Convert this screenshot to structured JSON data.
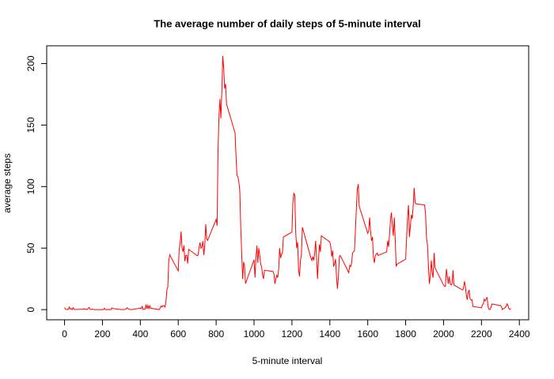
{
  "chart_data": {
    "type": "line",
    "title": "The average number of daily steps of 5-minute interval",
    "x_label": "5-minute interval",
    "y_label": "average steps",
    "color": "#ff0000",
    "xlim": [
      -94.2,
      2449.2
    ],
    "ylim": [
      -8.25,
      214.42
    ],
    "xticks": [
      0,
      200,
      400,
      600,
      800,
      1000,
      1200,
      1400,
      1600,
      1800,
      2000,
      2200,
      2400
    ],
    "yticks": [
      0,
      50,
      100,
      150,
      200
    ],
    "x": [
      0,
      5,
      10,
      15,
      20,
      25,
      30,
      35,
      40,
      45,
      50,
      55,
      100,
      105,
      110,
      115,
      120,
      125,
      130,
      135,
      140,
      145,
      150,
      155,
      200,
      205,
      210,
      215,
      220,
      225,
      230,
      235,
      240,
      245,
      250,
      255,
      300,
      305,
      310,
      315,
      320,
      325,
      330,
      335,
      340,
      345,
      350,
      355,
      400,
      405,
      410,
      415,
      420,
      425,
      430,
      435,
      440,
      445,
      450,
      455,
      500,
      505,
      510,
      515,
      520,
      525,
      530,
      535,
      540,
      545,
      550,
      555,
      600,
      605,
      610,
      615,
      620,
      625,
      630,
      635,
      640,
      645,
      650,
      655,
      700,
      705,
      710,
      715,
      720,
      725,
      730,
      735,
      740,
      745,
      750,
      755,
      800,
      805,
      810,
      815,
      820,
      825,
      830,
      835,
      840,
      845,
      850,
      855,
      900,
      905,
      910,
      915,
      920,
      925,
      930,
      935,
      940,
      945,
      950,
      955,
      1000,
      1005,
      1010,
      1015,
      1020,
      1025,
      1030,
      1035,
      1040,
      1045,
      1050,
      1055,
      1100,
      1105,
      1110,
      1115,
      1120,
      1125,
      1130,
      1135,
      1140,
      1145,
      1150,
      1155,
      1200,
      1205,
      1210,
      1215,
      1220,
      1225,
      1230,
      1235,
      1240,
      1245,
      1250,
      1255,
      1300,
      1305,
      1310,
      1315,
      1320,
      1325,
      1330,
      1335,
      1340,
      1345,
      1350,
      1355,
      1400,
      1405,
      1410,
      1415,
      1420,
      1425,
      1430,
      1435,
      1440,
      1445,
      1450,
      1455,
      1500,
      1505,
      1510,
      1515,
      1520,
      1525,
      1530,
      1535,
      1540,
      1545,
      1550,
      1555,
      1600,
      1605,
      1610,
      1615,
      1620,
      1625,
      1630,
      1635,
      1640,
      1645,
      1650,
      1655,
      1700,
      1705,
      1710,
      1715,
      1720,
      1725,
      1730,
      1735,
      1740,
      1745,
      1750,
      1755,
      1800,
      1805,
      1810,
      1815,
      1820,
      1825,
      1830,
      1835,
      1840,
      1845,
      1850,
      1855,
      1900,
      1905,
      1910,
      1915,
      1920,
      1925,
      1930,
      1935,
      1940,
      1945,
      1950,
      1955,
      2000,
      2005,
      2010,
      2015,
      2020,
      2025,
      2030,
      2035,
      2040,
      2045,
      2050,
      2055,
      2100,
      2105,
      2110,
      2115,
      2120,
      2125,
      2130,
      2135,
      2140,
      2145,
      2150,
      2155,
      2200,
      2205,
      2210,
      2215,
      2220,
      2225,
      2230,
      2235,
      2240,
      2245,
      2250,
      2255,
      2300,
      2305,
      2310,
      2315,
      2320,
      2325,
      2330,
      2335,
      2340,
      2345,
      2350,
      2355
    ],
    "values": [
      1.7,
      0.3,
      0.1,
      0.2,
      0.1,
      2.1,
      0.5,
      0.9,
      0,
      1.5,
      0.3,
      0.1,
      0.3,
      0.7,
      0.2,
      0.3,
      0,
      1.1,
      1.8,
      0.2,
      0.2,
      0.4,
      0.3,
      0,
      0,
      0,
      1.1,
      0,
      0,
      0.1,
      0,
      0.2,
      0,
      0,
      1.5,
      0.9,
      0,
      0,
      0,
      0,
      0.2,
      0.6,
      1.6,
      0.6,
      0.5,
      0.1,
      0,
      0,
      1.2,
      0.9,
      2.6,
      0,
      0.3,
      0.4,
      4.1,
      0.7,
      3.5,
      0.8,
      3.1,
      1.1,
      0,
      1.5,
      3,
      2.2,
      3.3,
      3,
      2.1,
      6.1,
      16,
      18.3,
      39.5,
      44.5,
      31.5,
      49.3,
      53.8,
      63.5,
      50,
      47.1,
      52.2,
      39.3,
      44,
      44.2,
      37.4,
      49,
      43.8,
      44.4,
      50.5,
      54.5,
      49.9,
      51,
      55.7,
      44.3,
      52.3,
      69.5,
      57.8,
      56.2,
      73.4,
      68.2,
      129.4,
      157.5,
      171.2,
      155.4,
      177.3,
      206.2,
      195.9,
      179.6,
      183.4,
      167,
      143.5,
      124,
      109.1,
      108.1,
      103.7,
      96,
      66.2,
      45.2,
      24.8,
      38.8,
      35,
      21.1,
      40.6,
      26,
      42,
      52,
      38,
      50,
      44,
      37,
      35,
      28,
      25,
      32,
      31,
      29,
      21,
      25,
      28,
      26,
      33,
      50,
      42,
      45,
      46,
      59,
      63,
      87,
      94.8,
      92.8,
      63,
      50,
      55,
      32,
      27,
      40,
      45,
      67,
      42,
      40,
      43,
      40,
      46,
      56,
      42,
      25,
      40,
      53,
      47,
      60,
      55,
      51,
      43,
      48,
      35,
      37,
      41,
      27,
      17,
      26,
      43,
      44,
      30,
      36,
      35,
      38,
      46,
      47,
      48,
      65,
      82,
      98,
      102,
      84,
      62,
      64,
      75,
      63,
      56,
      59,
      43,
      38,
      44,
      45,
      46,
      44,
      47,
      56,
      51,
      61,
      73,
      79,
      68,
      60,
      75,
      57,
      35,
      37,
      41,
      58,
      75,
      85,
      59,
      68,
      77,
      74,
      85,
      99,
      87,
      86,
      85,
      78,
      58,
      53,
      36,
      21,
      27,
      40,
      30,
      26,
      46,
      34,
      20,
      19,
      19,
      33,
      27,
      21,
      27,
      21,
      20,
      21,
      32,
      20,
      16,
      17,
      23,
      19,
      12,
      8,
      14,
      16,
      8.7,
      7.8,
      8,
      2.6,
      1.5,
      3.7,
      4.8,
      8.5,
      7.1,
      8.7,
      9.8,
      2.2,
      0.3,
      0.1,
      1.6,
      4.6,
      3.3,
      2.8,
      0,
      0.8,
      1,
      1.6,
      2.6,
      4.7,
      3.3,
      0.6,
      0.2,
      1.1
    ]
  }
}
